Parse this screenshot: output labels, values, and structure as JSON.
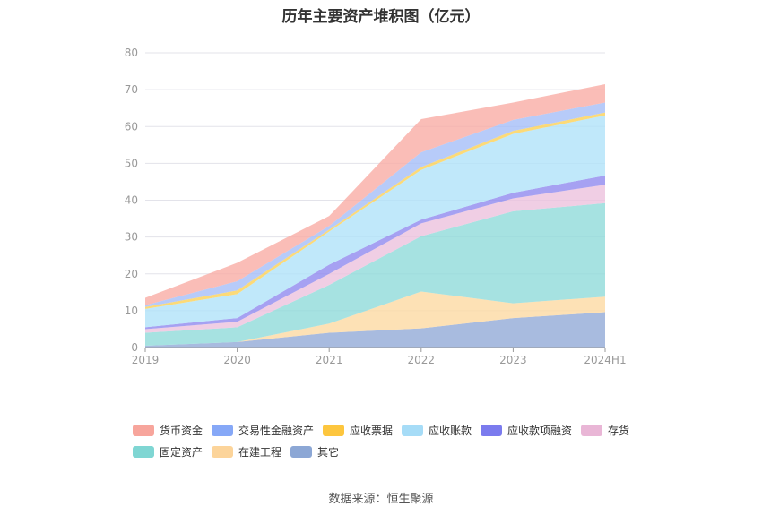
{
  "title": "历年主要资产堆积图（亿元）",
  "source": "数据来源：恒生聚源",
  "chart_data": {
    "type": "area",
    "stacked": true,
    "categories": [
      "2019",
      "2020",
      "2021",
      "2022",
      "2023",
      "2024H1"
    ],
    "ylim": [
      0,
      80
    ],
    "yticks": [
      0,
      10,
      20,
      30,
      40,
      50,
      60,
      70,
      80
    ],
    "grid": true,
    "legend_position": "bottom",
    "series": [
      {
        "name": "其它",
        "color": "#8fa8d6",
        "values": [
          0.5,
          1.5,
          4.0,
          5.2,
          8.0,
          9.6
        ]
      },
      {
        "name": "在建工程",
        "color": "#fdd9a0",
        "values": [
          0.0,
          0.0,
          2.5,
          10.0,
          4.0,
          4.2
        ]
      },
      {
        "name": "固定资产",
        "color": "#8ddad9",
        "values": [
          3.5,
          4.0,
          10.5,
          15.0,
          25.0,
          25.4
        ]
      },
      {
        "name": "存货",
        "color": "#ecc0dd",
        "values": [
          1.0,
          1.5,
          3.0,
          3.5,
          3.5,
          5.0
        ]
      },
      {
        "name": "应收款项融资",
        "color": "#8d87ee",
        "values": [
          0.5,
          1.0,
          2.5,
          1.0,
          1.5,
          2.5
        ]
      },
      {
        "name": "应收账款",
        "color": "#aee1f8",
        "values": [
          5.0,
          6.5,
          9.0,
          13.5,
          16.0,
          16.3
        ]
      },
      {
        "name": "应收票据",
        "color": "#fbcf52",
        "values": [
          0.5,
          1.0,
          0.5,
          0.8,
          0.8,
          0.8
        ]
      },
      {
        "name": "交易性金融资产",
        "color": "#a3bdf7",
        "values": [
          0.5,
          2.5,
          1.0,
          4.0,
          3.0,
          2.7
        ]
      },
      {
        "name": "货币资金",
        "color": "#f9aba3",
        "values": [
          2.0,
          5.0,
          2.7,
          9.0,
          4.7,
          5.0
        ]
      }
    ],
    "legend_order": [
      "货币资金",
      "交易性金融资产",
      "应收票据",
      "应收账款",
      "应收款项融资",
      "存货",
      "固定资产",
      "在建工程",
      "其它"
    ],
    "legend_colors": {
      "货币资金": "#f7a59c",
      "交易性金融资产": "#86a8f7",
      "应收票据": "#fdc63e",
      "应收账款": "#a6dcf7",
      "应收款项融资": "#7b7bee",
      "存货": "#e9b6d6",
      "固定资产": "#7fd6d3",
      "在建工程": "#fcd49a",
      "其它": "#8ca7d5"
    }
  }
}
